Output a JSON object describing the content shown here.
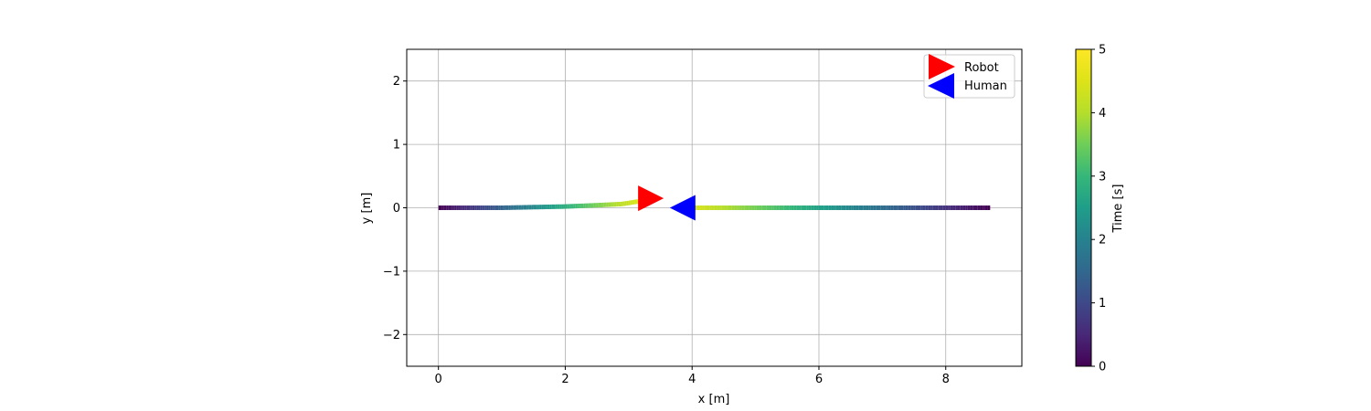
{
  "chart_data": {
    "type": "scatter",
    "xlabel": "x [m]",
    "ylabel": "y [m]",
    "xlim": [
      -0.5,
      9.2
    ],
    "ylim": [
      -2.5,
      2.5
    ],
    "xticks": [
      0,
      2,
      4,
      6,
      8
    ],
    "yticks": [
      -2,
      -1,
      0,
      1,
      2
    ],
    "xtick_labels": [
      "0",
      "2",
      "4",
      "6",
      "8"
    ],
    "ytick_labels": [
      "−2",
      "−1",
      "0",
      "1",
      "2"
    ],
    "grid": true,
    "legend_position": "top-right",
    "colorbar": {
      "label": "Time [s]",
      "range": [
        0,
        5
      ],
      "ticks": [
        0,
        1,
        2,
        3,
        4,
        5
      ],
      "tick_labels": [
        "0",
        "1",
        "2",
        "3",
        "4",
        "5"
      ],
      "colormap": "viridis"
    },
    "series": [
      {
        "name": "Robot",
        "color": "#ff0000",
        "marker": "triangle-right",
        "time_range": [
          0,
          4.5
        ],
        "trajectory": [
          {
            "x": 0.0,
            "y": 0.0
          },
          {
            "x": 0.5,
            "y": 0.0
          },
          {
            "x": 1.0,
            "y": 0.0
          },
          {
            "x": 1.5,
            "y": 0.01
          },
          {
            "x": 2.0,
            "y": 0.02
          },
          {
            "x": 2.5,
            "y": 0.04
          },
          {
            "x": 2.9,
            "y": 0.06
          },
          {
            "x": 3.15,
            "y": 0.1
          }
        ],
        "final_position": {
          "x": 3.35,
          "y": 0.15
        }
      },
      {
        "name": "Human",
        "color": "#0000ff",
        "marker": "triangle-left",
        "time_range": [
          0,
          4.5
        ],
        "trajectory": [
          {
            "x": 8.7,
            "y": 0.0
          },
          {
            "x": 4.0,
            "y": 0.0
          }
        ],
        "final_position": {
          "x": 3.85,
          "y": 0.0
        }
      }
    ]
  }
}
